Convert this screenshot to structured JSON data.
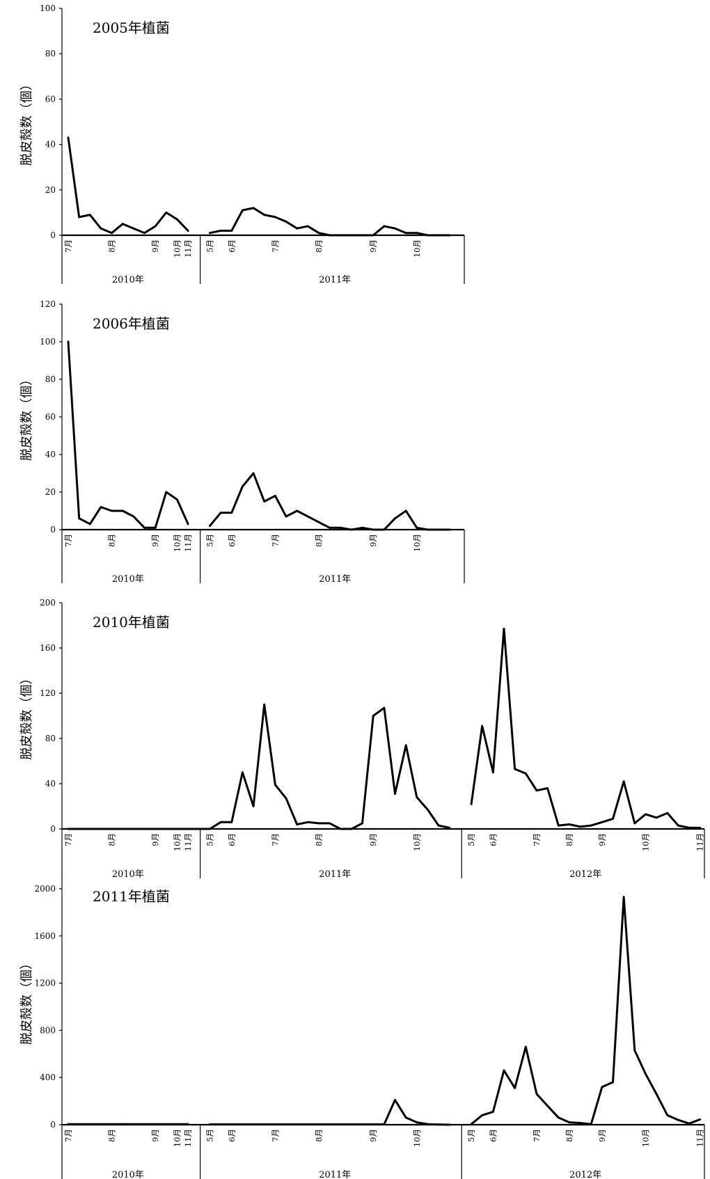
{
  "chart_data": [
    {
      "type": "line",
      "title": "2005年植菌",
      "ylabel": "脱皮殻数（個）",
      "ylim": [
        0,
        100
      ],
      "yticks": [
        0,
        20,
        40,
        60,
        80,
        100
      ],
      "month_labels": [
        {
          "label": "7月",
          "x": 0
        },
        {
          "label": "8月",
          "x": 4
        },
        {
          "label": "9月",
          "x": 8
        },
        {
          "label": "10月",
          "x": 10
        },
        {
          "label": "11月",
          "x": 11
        },
        {
          "label": "5月",
          "x": 13
        },
        {
          "label": "6月",
          "x": 15
        },
        {
          "label": "7月",
          "x": 19
        },
        {
          "label": "8月",
          "x": 23
        },
        {
          "label": "9月",
          "x": 28
        },
        {
          "label": "10月",
          "x": 32
        }
      ],
      "year_labels": [
        {
          "label": "2010年",
          "x": 6
        },
        {
          "label": "2011年",
          "x": 25
        }
      ],
      "series": [
        {
          "x": [
            0,
            1,
            2,
            3,
            4,
            5,
            6,
            7,
            8,
            9,
            10,
            11
          ],
          "values": [
            43,
            8,
            9,
            3,
            1,
            5,
            3,
            1,
            4,
            10,
            7,
            2
          ]
        },
        {
          "x": [
            13,
            14,
            15,
            16,
            17,
            18,
            19,
            20,
            21,
            22,
            23,
            24,
            25,
            26,
            27,
            28,
            29,
            30,
            31,
            32,
            33,
            34,
            35
          ],
          "values": [
            1,
            2,
            2,
            11,
            12,
            9,
            8,
            6,
            3,
            4,
            1,
            0,
            0,
            0,
            0,
            0,
            4,
            3,
            1,
            1,
            0,
            0,
            0
          ]
        }
      ]
    },
    {
      "type": "line",
      "title": "2006年植菌",
      "ylabel": "脱皮殻数（個）",
      "ylim": [
        0,
        120
      ],
      "yticks": [
        0,
        20,
        40,
        60,
        80,
        100,
        120
      ],
      "month_labels": [
        {
          "label": "7月",
          "x": 0
        },
        {
          "label": "8月",
          "x": 4
        },
        {
          "label": "9月",
          "x": 8
        },
        {
          "label": "10月",
          "x": 10
        },
        {
          "label": "11月",
          "x": 11
        },
        {
          "label": "5月",
          "x": 13
        },
        {
          "label": "6月",
          "x": 15
        },
        {
          "label": "7月",
          "x": 19
        },
        {
          "label": "8月",
          "x": 23
        },
        {
          "label": "9月",
          "x": 28
        },
        {
          "label": "10月",
          "x": 32
        }
      ],
      "year_labels": [
        {
          "label": "2010年",
          "x": 6
        },
        {
          "label": "2011年",
          "x": 25
        }
      ],
      "series": [
        {
          "x": [
            0,
            1,
            2,
            3,
            4,
            5,
            6,
            7,
            8,
            9,
            10,
            11
          ],
          "values": [
            100,
            6,
            3,
            12,
            10,
            10,
            7,
            1,
            1,
            20,
            16,
            3
          ]
        },
        {
          "x": [
            13,
            14,
            15,
            16,
            17,
            18,
            19,
            20,
            21,
            22,
            23,
            24,
            25,
            26,
            27,
            28,
            29,
            30,
            31,
            32,
            33,
            34,
            35
          ],
          "values": [
            2,
            9,
            9,
            23,
            30,
            15,
            18,
            7,
            10,
            7,
            4,
            1,
            1,
            0,
            1,
            0,
            0,
            6,
            10,
            1,
            0,
            0,
            0
          ]
        }
      ]
    },
    {
      "type": "line",
      "title": "2010年植菌",
      "ylabel": "脱皮殻数（個）",
      "ylim": [
        0,
        200
      ],
      "yticks": [
        0,
        40,
        80,
        120,
        160,
        200
      ],
      "month_labels": [
        {
          "label": "7月",
          "x": 0
        },
        {
          "label": "8月",
          "x": 4
        },
        {
          "label": "9月",
          "x": 8
        },
        {
          "label": "10月",
          "x": 10
        },
        {
          "label": "11月",
          "x": 11
        },
        {
          "label": "5月",
          "x": 13
        },
        {
          "label": "6月",
          "x": 15
        },
        {
          "label": "7月",
          "x": 19
        },
        {
          "label": "8月",
          "x": 23
        },
        {
          "label": "9月",
          "x": 28
        },
        {
          "label": "10月",
          "x": 32
        },
        {
          "label": "5月",
          "x": 37
        },
        {
          "label": "6月",
          "x": 39
        },
        {
          "label": "7月",
          "x": 43
        },
        {
          "label": "8月",
          "x": 46
        },
        {
          "label": "9月",
          "x": 49
        },
        {
          "label": "10月",
          "x": 53
        },
        {
          "label": "11月",
          "x": 58
        }
      ],
      "year_labels": [
        {
          "label": "2010年",
          "x": 6
        },
        {
          "label": "2011年",
          "x": 25
        },
        {
          "label": "2012年",
          "x": 48
        }
      ],
      "series": [
        {
          "x": [
            0,
            1,
            2,
            3,
            4,
            5,
            6,
            7,
            8,
            9,
            10,
            11,
            12,
            13,
            14,
            15,
            16,
            17,
            18,
            19,
            20,
            21,
            22,
            23,
            24,
            25,
            26,
            27,
            28,
            29,
            30,
            31,
            32,
            33,
            34,
            35
          ],
          "values": [
            0,
            0,
            0,
            0,
            0,
            0,
            0,
            0,
            0,
            0,
            0,
            0,
            0,
            0,
            6,
            6,
            50,
            20,
            110,
            39,
            27,
            4,
            6,
            5,
            5,
            0,
            0,
            5,
            100,
            107,
            31,
            74,
            28,
            17,
            3,
            1
          ]
        },
        {
          "x": [
            37,
            38,
            39,
            40,
            41,
            42,
            43,
            44,
            45,
            46,
            47,
            48,
            49,
            50,
            51,
            52,
            53,
            54,
            55,
            56,
            57,
            58
          ],
          "values": [
            22,
            91,
            50,
            177,
            53,
            49,
            34,
            36,
            3,
            4,
            2,
            3,
            6,
            9,
            42,
            5,
            13,
            10,
            14,
            3,
            1,
            1
          ]
        }
      ]
    },
    {
      "type": "line",
      "title": "2011年植菌",
      "ylabel": "脱皮殻数（個）",
      "ylim": [
        0,
        2100
      ],
      "yticks": [
        0,
        400,
        800,
        1200,
        1600,
        2000
      ],
      "month_labels": [
        {
          "label": "7月",
          "x": 0
        },
        {
          "label": "8月",
          "x": 4
        },
        {
          "label": "9月",
          "x": 8
        },
        {
          "label": "10月",
          "x": 10
        },
        {
          "label": "11月",
          "x": 11
        },
        {
          "label": "5月",
          "x": 13
        },
        {
          "label": "6月",
          "x": 15
        },
        {
          "label": "7月",
          "x": 19
        },
        {
          "label": "8月",
          "x": 23
        },
        {
          "label": "9月",
          "x": 28
        },
        {
          "label": "10月",
          "x": 32
        },
        {
          "label": "5月",
          "x": 37
        },
        {
          "label": "6月",
          "x": 39
        },
        {
          "label": "7月",
          "x": 43
        },
        {
          "label": "8月",
          "x": 46
        },
        {
          "label": "9月",
          "x": 49
        },
        {
          "label": "10月",
          "x": 53
        },
        {
          "label": "11月",
          "x": 58
        }
      ],
      "year_labels": [
        {
          "label": "2010年",
          "x": 6
        },
        {
          "label": "2011年",
          "x": 25
        },
        {
          "label": "2012年",
          "x": 48
        }
      ],
      "series": [
        {
          "x": [
            0,
            1,
            2,
            3,
            4,
            5,
            6,
            7,
            8,
            9,
            10,
            11
          ],
          "values": [
            5,
            5,
            5,
            5,
            5,
            5,
            5,
            5,
            5,
            5,
            5,
            5
          ]
        },
        {
          "x": [
            13,
            14,
            15,
            16,
            17,
            18,
            19,
            20,
            21,
            22,
            23,
            24,
            25,
            26,
            27,
            28,
            29,
            30,
            31,
            32,
            33,
            34,
            35
          ],
          "values": [
            3,
            3,
            3,
            3,
            3,
            3,
            3,
            3,
            3,
            3,
            3,
            3,
            3,
            3,
            3,
            3,
            3,
            210,
            60,
            20,
            5,
            2,
            0
          ]
        },
        {
          "x": [
            37,
            38,
            39,
            40,
            41,
            42,
            43,
            44,
            45,
            46,
            47,
            48,
            49,
            50,
            51,
            52,
            53,
            54,
            55,
            56,
            57,
            58
          ],
          "values": [
            5,
            80,
            110,
            460,
            310,
            660,
            260,
            160,
            60,
            20,
            15,
            5,
            320,
            360,
            1930,
            630,
            430,
            260,
            80,
            40,
            10,
            45
          ]
        }
      ]
    }
  ]
}
